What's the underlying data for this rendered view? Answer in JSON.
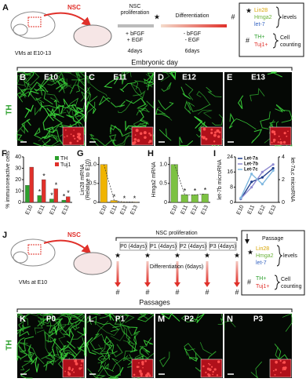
{
  "scheme_a": {
    "label": "A",
    "nsc": "NSC",
    "source": "VMs at E10-13",
    "proliferation": [
      "NSC",
      "proliferation"
    ],
    "prolif_media": [
      "+ bFGF",
      "+ EGF"
    ],
    "prolif_days": "4days",
    "differentiation": "Differentiation",
    "diff_media": [
      "- bFGF",
      "- EGF"
    ],
    "diff_days": "6days",
    "star": "★",
    "hash": "#",
    "legend": {
      "star": "★",
      "mirna": [
        "Lin28",
        "Hmga2",
        "let-7"
      ],
      "levels": "levels",
      "hash": "#",
      "cells": [
        "TH+",
        "Tuj1+"
      ],
      "counting": [
        "Cell",
        "counting"
      ]
    }
  },
  "embryonic_header": "Embryonic day",
  "images_e": {
    "marker": "TH",
    "panels": [
      {
        "label": "B",
        "stage": "E10"
      },
      {
        "label": "C",
        "stage": "E11"
      },
      {
        "label": "D",
        "stage": "E12"
      },
      {
        "label": "E",
        "stage": "E13"
      }
    ]
  },
  "chart_data": [
    {
      "type": "bar",
      "panel": "F",
      "y_label": [
        "% immunoreactive cells"
      ],
      "categories": [
        "E10",
        "E11",
        "E12",
        "E13"
      ],
      "series": [
        {
          "name": "TH",
          "color": "#2ca02c",
          "values": [
            15,
            6,
            3,
            2
          ],
          "significance": [
            null,
            "*",
            "*",
            "*"
          ]
        },
        {
          "name": "Tuj1",
          "color": "#e0302a",
          "values": [
            31,
            20,
            12,
            5
          ],
          "significance": [
            null,
            "*",
            "*",
            "*"
          ]
        }
      ],
      "ylim": [
        0,
        40
      ],
      "yticks": [
        0,
        10,
        20,
        30,
        40
      ]
    },
    {
      "type": "bar",
      "panel": "G",
      "y_label": [
        "Lin28 mRNA",
        "(Relative to E10)"
      ],
      "categories": [
        "E10",
        "E11",
        "E12",
        "E13"
      ],
      "values": [
        1.0,
        0.05,
        0.01,
        0.01
      ],
      "significance": [
        null,
        "*",
        "*",
        "*"
      ],
      "color": "#f0b400",
      "dashed_line": true,
      "ylim": [
        0,
        1.2
      ],
      "yticks": [
        0,
        0.5,
        {
          "value": 1,
          "label": "1.0"
        }
      ]
    },
    {
      "type": "bar",
      "panel": "H",
      "y_label": [
        "Hmga2 mRNA"
      ],
      "categories": [
        "E10",
        "E11",
        "E12",
        "E13"
      ],
      "values": [
        1.0,
        0.2,
        0.2,
        0.22
      ],
      "significance": [
        null,
        "*",
        "*",
        "*"
      ],
      "color": "#7cc242",
      "dashed_line": true,
      "ylim": [
        0,
        1.2
      ],
      "yticks": [
        0,
        0.5,
        {
          "value": 1,
          "label": "1.0"
        }
      ]
    },
    {
      "type": "line",
      "panel": "I",
      "y_label": [
        "let-7b microRNA"
      ],
      "y2_label": "let-7a,c microRNA",
      "categories": [
        "E10",
        "E11",
        "E12",
        "E13"
      ],
      "series": [
        {
          "name": "Let-7a",
          "color": "#1f3d8c",
          "axis": "y2",
          "values": [
            0.3,
            1.8,
            2.2,
            3.0
          ]
        },
        {
          "name": "Let-7b",
          "color": "#8f8ad0",
          "values": [
            2,
            8,
            16,
            20
          ]
        },
        {
          "name": "Let-7c",
          "color": "#7fb8e0",
          "axis": "y2",
          "values": [
            0.4,
            2.5,
            1.6,
            2.8
          ]
        }
      ],
      "ylim": [
        0,
        24
      ],
      "yticks": [
        0,
        8,
        16,
        24
      ],
      "y2lim": [
        0,
        4
      ],
      "y2ticks": [
        0,
        2,
        4
      ]
    }
  ],
  "scheme_j": {
    "label": "J",
    "nsc": "NSC",
    "source": "VMs at E10",
    "proliferation": "NSC proliferation",
    "passages": [
      "P0 (4days)",
      "P1 (4days)",
      "P2 (4days)",
      "P3 (4days)"
    ],
    "differentiation": "Differentiation (6days)",
    "star": "★",
    "hash": "#",
    "legend": {
      "passage": "Passage",
      "star": "★",
      "mirna": [
        "Lin28",
        "Hmga2",
        "let-7"
      ],
      "levels": "levels",
      "hash": "#",
      "cells": [
        "TH+",
        "Tuj1+"
      ],
      "counting": [
        "Cell",
        "counting"
      ]
    }
  },
  "passages_header": "Passages",
  "images_p": {
    "marker": "TH",
    "panels": [
      {
        "label": "K",
        "stage": "P0"
      },
      {
        "label": "L",
        "stage": "P1"
      },
      {
        "label": "M",
        "stage": "P2"
      },
      {
        "label": "N",
        "stage": "P3"
      }
    ]
  }
}
